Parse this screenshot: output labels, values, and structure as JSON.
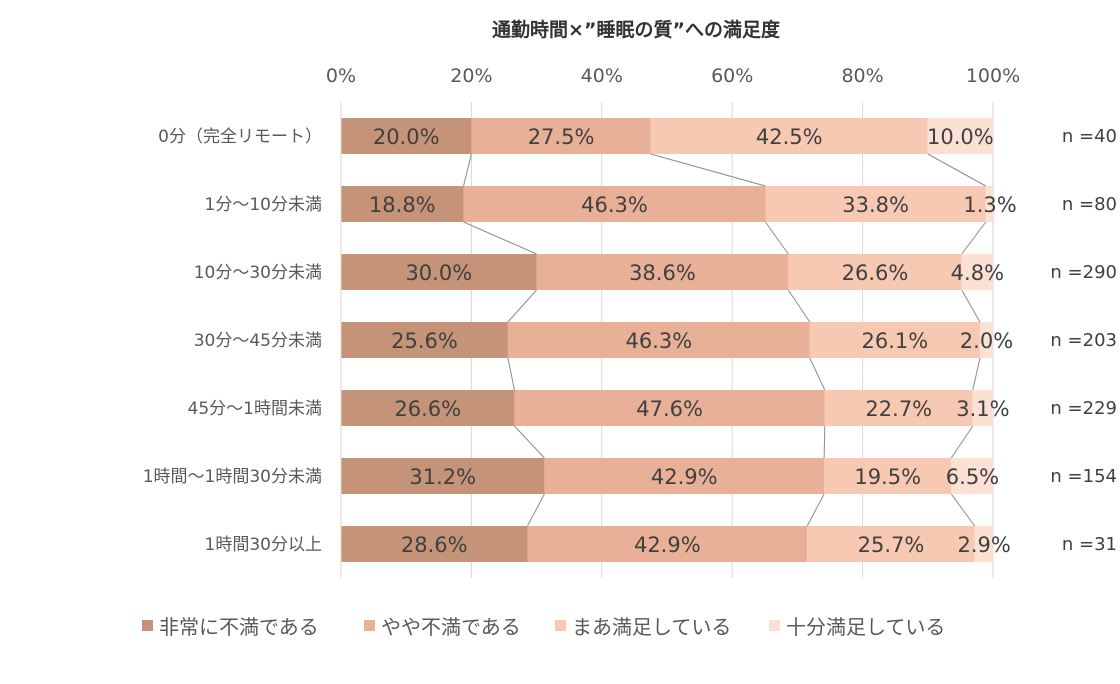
{
  "chart_data": {
    "type": "bar",
    "orientation": "horizontal",
    "stacked": "percent",
    "title": "通勤時間×”睡眠の質”への満足度",
    "categories": [
      "0分（完全リモート）",
      "1分～10分未満",
      "10分～30分未満",
      "30分～45分未満",
      "45分～1時間未満",
      "1時間～1時間30分未満",
      "1時間30分以上"
    ],
    "xlim": [
      0,
      100
    ],
    "x_ticks": [
      "0%",
      "20%",
      "40%",
      "60%",
      "80%",
      "100%"
    ],
    "grid": true,
    "legend_position": "bottom",
    "series_lines": true,
    "series": [
      {
        "name": "非常に不満である",
        "color": "#c49378",
        "values": [
          20.0,
          18.8,
          30.0,
          25.6,
          26.6,
          31.2,
          28.6
        ],
        "labels": [
          "20.0%",
          "18.8%",
          "30.0%",
          "25.6%",
          "26.6%",
          "31.2%",
          "28.6%"
        ]
      },
      {
        "name": "やや不満である",
        "color": "#e8b096",
        "values": [
          27.5,
          46.3,
          38.6,
          46.3,
          47.6,
          42.9,
          42.9
        ],
        "labels": [
          "27.5%",
          "46.3%",
          "38.6%",
          "46.3%",
          "47.6%",
          "42.9%",
          "42.9%"
        ]
      },
      {
        "name": "まあ満足している",
        "color": "#f7c8b2",
        "values": [
          42.5,
          33.8,
          26.6,
          26.1,
          22.7,
          19.5,
          25.7
        ],
        "labels": [
          "42.5%",
          "33.8%",
          "26.6%",
          "26.1%",
          "22.7%",
          "19.5%",
          "25.7%"
        ]
      },
      {
        "name": "十分満足している",
        "color": "#fbe0d4",
        "values": [
          10.0,
          1.3,
          4.8,
          2.0,
          3.1,
          6.5,
          2.9
        ],
        "labels": [
          "10.0%",
          "1.3%",
          "4.8%",
          "2.0%",
          "3.1%",
          "6.5%",
          "2.9%"
        ]
      }
    ],
    "n_labels": [
      "n =40",
      "n =80",
      "n =290",
      "n =203",
      "n =229",
      "n =154",
      "n =31"
    ]
  }
}
